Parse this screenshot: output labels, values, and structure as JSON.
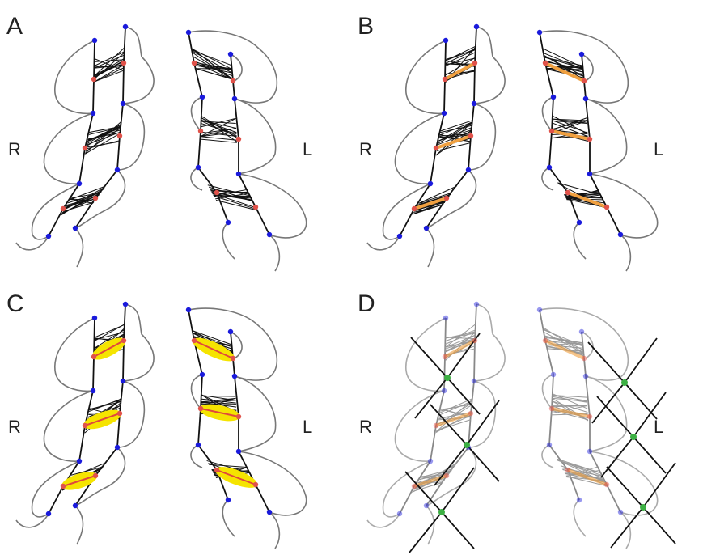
{
  "panels": [
    {
      "label": "A",
      "left": "R",
      "right": "L"
    },
    {
      "label": "B",
      "left": "R",
      "right": "L"
    },
    {
      "label": "C",
      "left": "R",
      "right": "L"
    },
    {
      "label": "D",
      "left": "R",
      "right": "L"
    }
  ]
}
